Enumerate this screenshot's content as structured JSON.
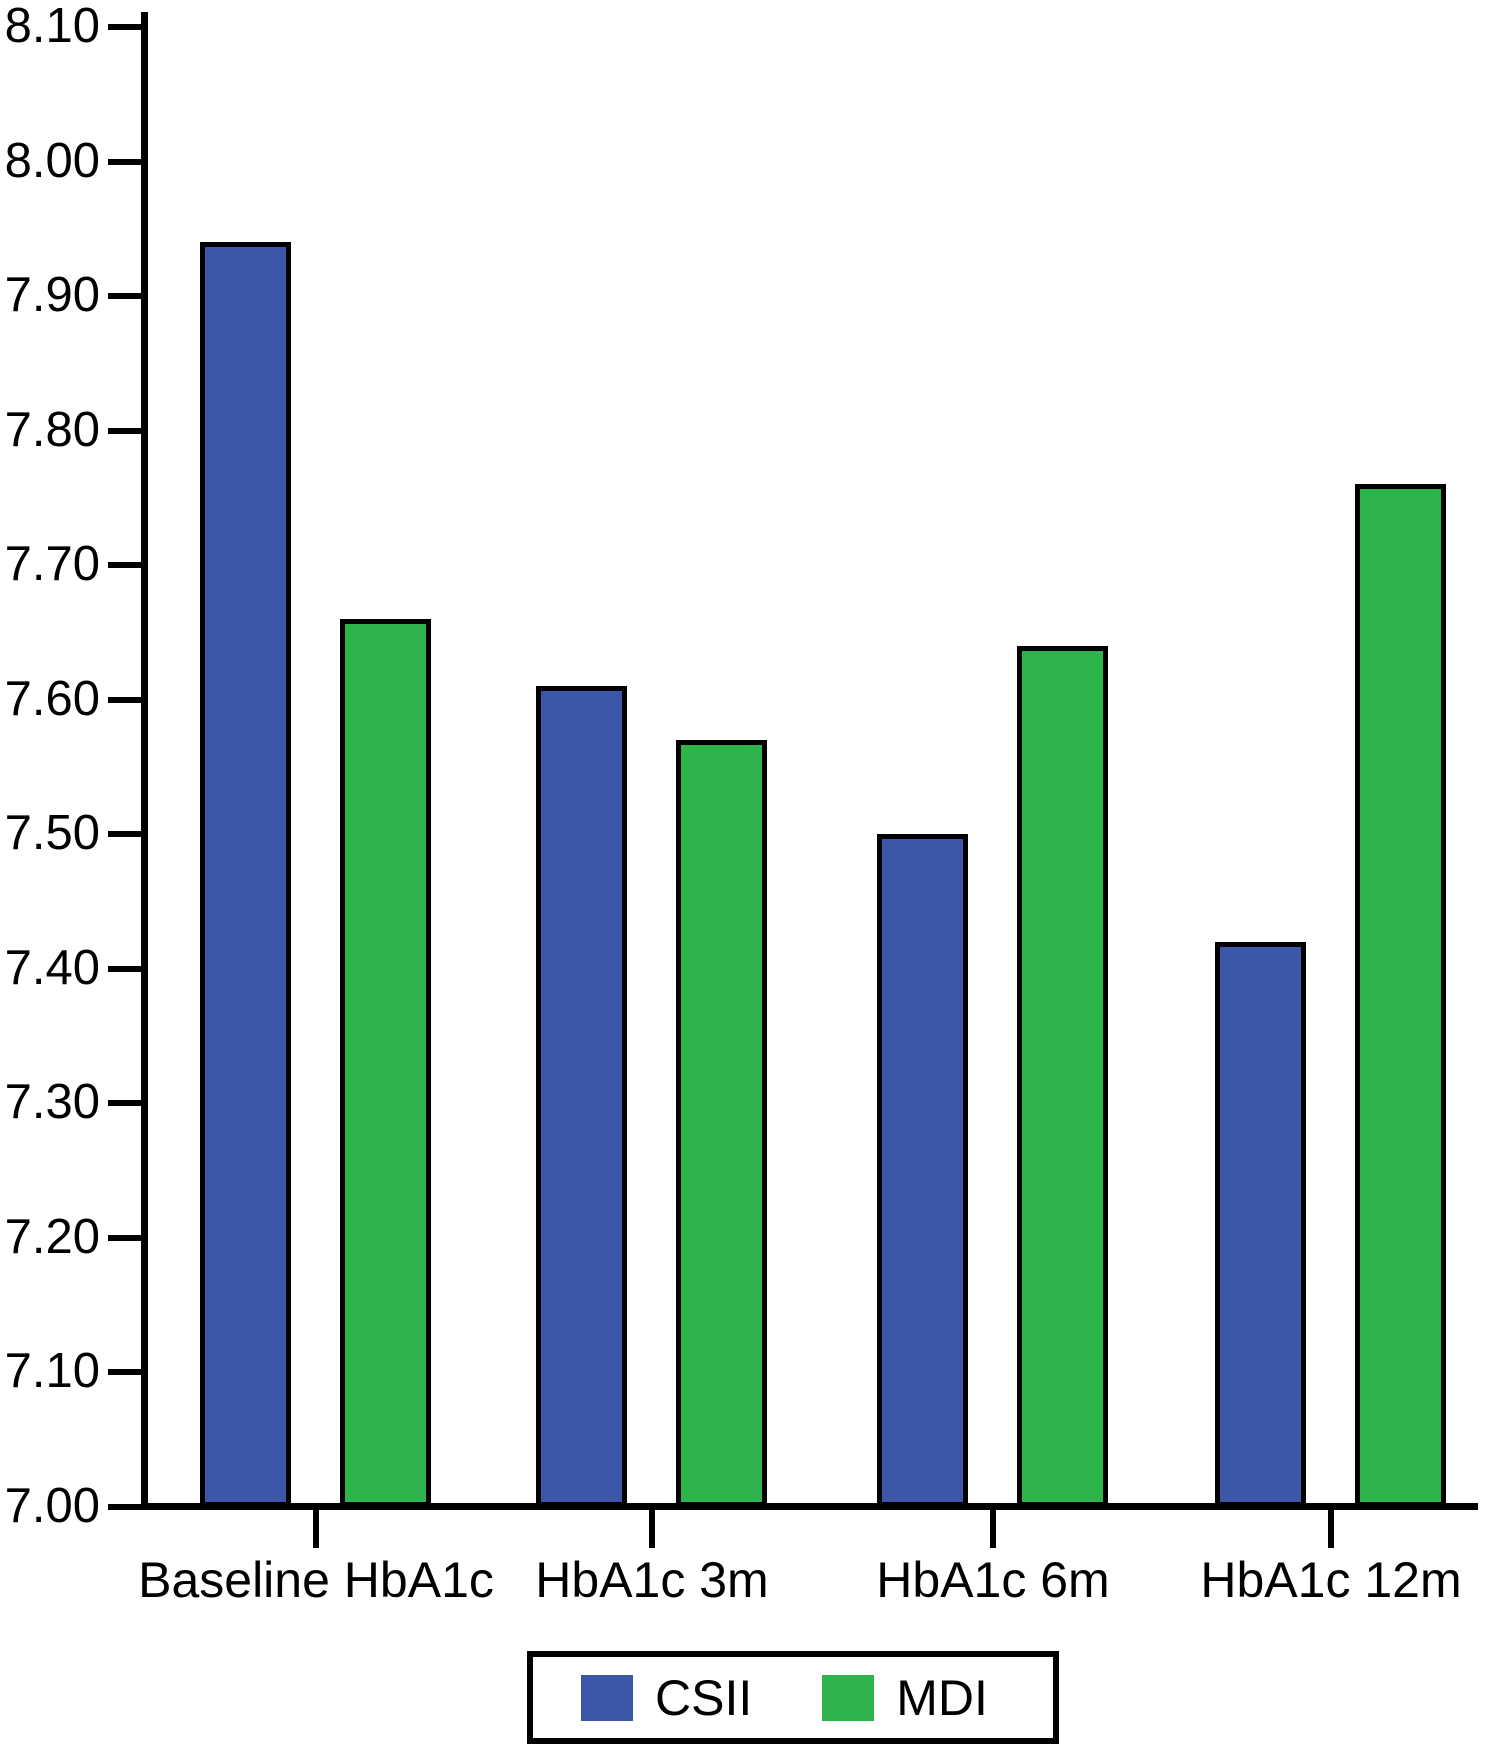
{
  "figure": {
    "background": "#FFFFFF",
    "axis_color": "#000000",
    "text_color": "#000000"
  },
  "chart_data": {
    "type": "bar",
    "title": "",
    "xlabel": "",
    "ylabel": "",
    "categories": [
      "Baseline HbA1c",
      "HbA1c 3m",
      "HbA1c 6m",
      "HbA1c 12m"
    ],
    "series": [
      {
        "name": "CSII",
        "color": "#3D57A8",
        "values": [
          7.94,
          7.61,
          7.5,
          7.42
        ]
      },
      {
        "name": "MDI",
        "color": "#2DB44A",
        "values": [
          7.66,
          7.57,
          7.64,
          7.76
        ]
      }
    ],
    "ylim": [
      7.0,
      8.1
    ],
    "ytick_step": 0.1,
    "ytick_labels": [
      "8.10",
      "8.00",
      "7.90",
      "7.80",
      "7.70",
      "7.60",
      "7.50",
      "7.40",
      "7.30",
      "7.20",
      "7.10",
      "7.00"
    ],
    "grid": false,
    "bar_outline_color": "#000000",
    "legend_position": "bottom-center",
    "legend_entries": [
      "CSII",
      "MDI"
    ]
  }
}
